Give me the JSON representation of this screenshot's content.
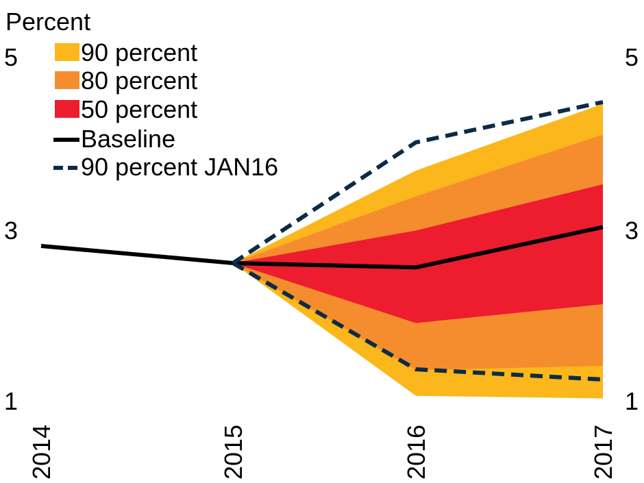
{
  "chart_data": {
    "type": "area",
    "ylabel": "Percent",
    "x": [
      "2014",
      "2015",
      "2016",
      "2017"
    ],
    "ylim": [
      1,
      5
    ],
    "yticks": [
      "1",
      "3",
      "5"
    ],
    "grid": false,
    "legend_position": "top-left",
    "fan_bands": [
      {
        "name": "90 percent",
        "color": "#fbb71b",
        "x": [
          "2015",
          "2016",
          "2017"
        ],
        "low": [
          2.6,
          1.05,
          1.02
        ],
        "high": [
          2.6,
          3.68,
          4.46
        ]
      },
      {
        "name": "80 percent",
        "color": "#f58d2e",
        "x": [
          "2015",
          "2016",
          "2017"
        ],
        "low": [
          2.6,
          1.35,
          1.4
        ],
        "high": [
          2.6,
          3.38,
          4.1
        ]
      },
      {
        "name": "50 percent",
        "color": "#ed1c2e",
        "x": [
          "2015",
          "2016",
          "2017"
        ],
        "low": [
          2.6,
          1.9,
          2.12
        ],
        "high": [
          2.6,
          2.98,
          3.52
        ]
      }
    ],
    "series": [
      {
        "name": "Baseline",
        "color": "#000000",
        "style": "solid",
        "x": [
          "2014",
          "2015",
          "2016",
          "2017"
        ],
        "values": [
          2.8,
          2.6,
          2.55,
          3.02
        ]
      },
      {
        "name": "90 percent JAN16",
        "color": "#0d2b45",
        "style": "dashed",
        "x": [
          "2015",
          "2016",
          "2017"
        ],
        "values": [
          2.6,
          4.01,
          4.48
        ]
      },
      {
        "name": "90 percent JAN16",
        "color": "#0d2b45",
        "style": "dashed",
        "x": [
          "2015",
          "2016",
          "2017"
        ],
        "values": [
          2.6,
          1.36,
          1.24
        ]
      }
    ],
    "legend": [
      {
        "label": "90 percent",
        "kind": "swatch",
        "color": "#fbb71b"
      },
      {
        "label": "80 percent",
        "kind": "swatch",
        "color": "#f58d2e"
      },
      {
        "label": "50 percent",
        "kind": "swatch",
        "color": "#ed1c2e"
      },
      {
        "label": "Baseline",
        "kind": "solid-line",
        "color": "#000000"
      },
      {
        "label": "90 percent JAN16",
        "kind": "dashed-line",
        "color": "#0d2b45"
      }
    ]
  }
}
